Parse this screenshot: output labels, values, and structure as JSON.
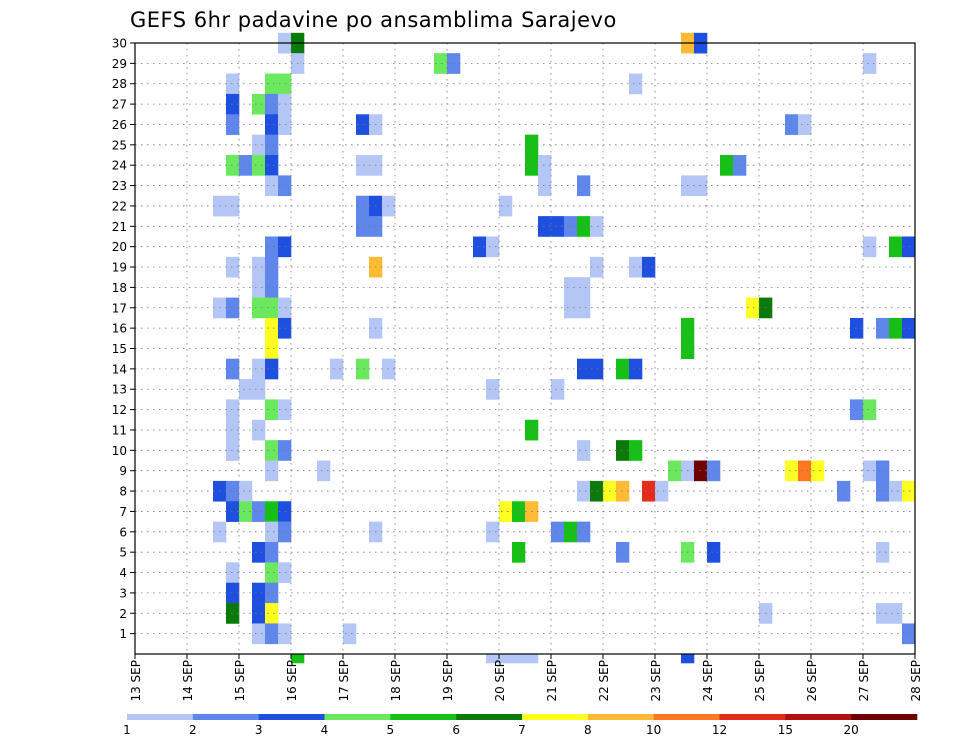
{
  "chart_data": {
    "type": "heatmap",
    "title": "GEFS 6hr padavine po ansamblima Sarajevo",
    "xlabel": "",
    "ylabel": "",
    "x_tick_labels": [
      "13 SEP",
      "14 SEP",
      "15 SEP",
      "16 SEP",
      "17 SEP",
      "18 SEP",
      "19 SEP",
      "20 SEP",
      "21 SEP",
      "22 SEP",
      "23 SEP",
      "24 SEP",
      "25 SEP",
      "26 SEP",
      "27 SEP",
      "28 SEP"
    ],
    "y_tick_labels": [
      "1",
      "2",
      "3",
      "4",
      "5",
      "6",
      "7",
      "8",
      "9",
      "10",
      "11",
      "12",
      "13",
      "14",
      "15",
      "16",
      "17",
      "18",
      "19",
      "20",
      "21",
      "22",
      "23",
      "24",
      "25",
      "26",
      "27",
      "28",
      "29",
      "30"
    ],
    "x_range": [
      0,
      60
    ],
    "y_range": [
      0,
      30
    ],
    "x_step_note": "6-hour steps, 4 per day",
    "grid": true,
    "colorbar": {
      "labels": [
        "1",
        "2",
        "3",
        "4",
        "5",
        "6",
        "7",
        "8",
        "10",
        "12",
        "15",
        "20"
      ],
      "colors": [
        "#b3c6f5",
        "#5f86ea",
        "#1e4fdf",
        "#6ce85e",
        "#16c016",
        "#0b7a0b",
        "#ffff22",
        "#ffbb33",
        "#ff7722",
        "#e62b1a",
        "#b31010",
        "#6e0000"
      ]
    },
    "cells": [
      {
        "m": 30,
        "t": 11,
        "c": 0
      },
      {
        "m": 30,
        "t": 12,
        "c": 5
      },
      {
        "m": 30,
        "t": 42,
        "c": 7
      },
      {
        "m": 30,
        "t": 43,
        "c": 2
      },
      {
        "m": 29,
        "t": 12,
        "c": 0
      },
      {
        "m": 29,
        "t": 23,
        "c": 3
      },
      {
        "m": 29,
        "t": 24,
        "c": 1
      },
      {
        "m": 29,
        "t": 56,
        "c": 0
      },
      {
        "m": 28,
        "t": 7,
        "c": 0
      },
      {
        "m": 28,
        "t": 10,
        "c": 3
      },
      {
        "m": 28,
        "t": 11,
        "c": 3
      },
      {
        "m": 28,
        "t": 38,
        "c": 0
      },
      {
        "m": 27,
        "t": 7,
        "c": 2
      },
      {
        "m": 27,
        "t": 9,
        "c": 3
      },
      {
        "m": 27,
        "t": 10,
        "c": 1
      },
      {
        "m": 27,
        "t": 11,
        "c": 0
      },
      {
        "m": 26,
        "t": 7,
        "c": 1
      },
      {
        "m": 26,
        "t": 10,
        "c": 2
      },
      {
        "m": 26,
        "t": 11,
        "c": 0
      },
      {
        "m": 26,
        "t": 17,
        "c": 2
      },
      {
        "m": 26,
        "t": 18,
        "c": 0
      },
      {
        "m": 26,
        "t": 50,
        "c": 1
      },
      {
        "m": 26,
        "t": 51,
        "c": 0
      },
      {
        "m": 25,
        "t": 9,
        "c": 0
      },
      {
        "m": 25,
        "t": 10,
        "c": 1
      },
      {
        "m": 25,
        "t": 30,
        "c": 4
      },
      {
        "m": 24,
        "t": 7,
        "c": 3
      },
      {
        "m": 24,
        "t": 8,
        "c": 1
      },
      {
        "m": 24,
        "t": 9,
        "c": 3
      },
      {
        "m": 24,
        "t": 10,
        "c": 2
      },
      {
        "m": 24,
        "t": 17,
        "c": 0
      },
      {
        "m": 24,
        "t": 18,
        "c": 0
      },
      {
        "m": 24,
        "t": 30,
        "c": 4
      },
      {
        "m": 24,
        "t": 31,
        "c": 0
      },
      {
        "m": 24,
        "t": 45,
        "c": 4
      },
      {
        "m": 24,
        "t": 46,
        "c": 1
      },
      {
        "m": 23,
        "t": 10,
        "c": 0
      },
      {
        "m": 23,
        "t": 11,
        "c": 1
      },
      {
        "m": 23,
        "t": 31,
        "c": 0
      },
      {
        "m": 23,
        "t": 34,
        "c": 1
      },
      {
        "m": 23,
        "t": 42,
        "c": 0
      },
      {
        "m": 23,
        "t": 43,
        "c": 0
      },
      {
        "m": 22,
        "t": 6,
        "c": 0
      },
      {
        "m": 22,
        "t": 7,
        "c": 0
      },
      {
        "m": 22,
        "t": 17,
        "c": 1
      },
      {
        "m": 22,
        "t": 18,
        "c": 2
      },
      {
        "m": 22,
        "t": 19,
        "c": 0
      },
      {
        "m": 22,
        "t": 28,
        "c": 0
      },
      {
        "m": 21,
        "t": 17,
        "c": 1
      },
      {
        "m": 21,
        "t": 18,
        "c": 1
      },
      {
        "m": 21,
        "t": 31,
        "c": 2
      },
      {
        "m": 21,
        "t": 32,
        "c": 2
      },
      {
        "m": 21,
        "t": 33,
        "c": 1
      },
      {
        "m": 21,
        "t": 34,
        "c": 4
      },
      {
        "m": 21,
        "t": 35,
        "c": 0
      },
      {
        "m": 20,
        "t": 10,
        "c": 1
      },
      {
        "m": 20,
        "t": 11,
        "c": 2
      },
      {
        "m": 20,
        "t": 26,
        "c": 2
      },
      {
        "m": 20,
        "t": 27,
        "c": 0
      },
      {
        "m": 20,
        "t": 56,
        "c": 0
      },
      {
        "m": 20,
        "t": 58,
        "c": 4
      },
      {
        "m": 20,
        "t": 59,
        "c": 2
      },
      {
        "m": 19,
        "t": 7,
        "c": 0
      },
      {
        "m": 19,
        "t": 9,
        "c": 0
      },
      {
        "m": 19,
        "t": 10,
        "c": 1
      },
      {
        "m": 19,
        "t": 18,
        "c": 7
      },
      {
        "m": 19,
        "t": 35,
        "c": 0
      },
      {
        "m": 19,
        "t": 38,
        "c": 0
      },
      {
        "m": 19,
        "t": 39,
        "c": 2
      },
      {
        "m": 18,
        "t": 9,
        "c": 0
      },
      {
        "m": 18,
        "t": 10,
        "c": 1
      },
      {
        "m": 18,
        "t": 33,
        "c": 0
      },
      {
        "m": 18,
        "t": 34,
        "c": 0
      },
      {
        "m": 17,
        "t": 6,
        "c": 0
      },
      {
        "m": 17,
        "t": 7,
        "c": 1
      },
      {
        "m": 17,
        "t": 9,
        "c": 3
      },
      {
        "m": 17,
        "t": 10,
        "c": 3
      },
      {
        "m": 17,
        "t": 11,
        "c": 0
      },
      {
        "m": 17,
        "t": 33,
        "c": 0
      },
      {
        "m": 17,
        "t": 34,
        "c": 0
      },
      {
        "m": 17,
        "t": 47,
        "c": 6
      },
      {
        "m": 17,
        "t": 48,
        "c": 5
      },
      {
        "m": 16,
        "t": 10,
        "c": 6
      },
      {
        "m": 16,
        "t": 11,
        "c": 2
      },
      {
        "m": 16,
        "t": 18,
        "c": 0
      },
      {
        "m": 16,
        "t": 42,
        "c": 4
      },
      {
        "m": 16,
        "t": 55,
        "c": 2
      },
      {
        "m": 16,
        "t": 57,
        "c": 1
      },
      {
        "m": 16,
        "t": 58,
        "c": 4
      },
      {
        "m": 16,
        "t": 59,
        "c": 2
      },
      {
        "m": 15,
        "t": 10,
        "c": 6
      },
      {
        "m": 15,
        "t": 42,
        "c": 4
      },
      {
        "m": 14,
        "t": 7,
        "c": 1
      },
      {
        "m": 14,
        "t": 9,
        "c": 0
      },
      {
        "m": 14,
        "t": 10,
        "c": 2
      },
      {
        "m": 14,
        "t": 15,
        "c": 0
      },
      {
        "m": 14,
        "t": 17,
        "c": 3
      },
      {
        "m": 14,
        "t": 19,
        "c": 0
      },
      {
        "m": 14,
        "t": 34,
        "c": 2
      },
      {
        "m": 14,
        "t": 35,
        "c": 2
      },
      {
        "m": 14,
        "t": 37,
        "c": 4
      },
      {
        "m": 14,
        "t": 38,
        "c": 2
      },
      {
        "m": 13,
        "t": 8,
        "c": 0
      },
      {
        "m": 13,
        "t": 9,
        "c": 0
      },
      {
        "m": 13,
        "t": 27,
        "c": 0
      },
      {
        "m": 13,
        "t": 32,
        "c": 0
      },
      {
        "m": 12,
        "t": 7,
        "c": 0
      },
      {
        "m": 12,
        "t": 10,
        "c": 3
      },
      {
        "m": 12,
        "t": 11,
        "c": 0
      },
      {
        "m": 12,
        "t": 55,
        "c": 1
      },
      {
        "m": 12,
        "t": 56,
        "c": 3
      },
      {
        "m": 11,
        "t": 7,
        "c": 0
      },
      {
        "m": 11,
        "t": 9,
        "c": 0
      },
      {
        "m": 11,
        "t": 30,
        "c": 4
      },
      {
        "m": 10,
        "t": 7,
        "c": 0
      },
      {
        "m": 10,
        "t": 10,
        "c": 3
      },
      {
        "m": 10,
        "t": 11,
        "c": 1
      },
      {
        "m": 10,
        "t": 34,
        "c": 0
      },
      {
        "m": 10,
        "t": 37,
        "c": 5
      },
      {
        "m": 10,
        "t": 38,
        "c": 4
      },
      {
        "m": 9,
        "t": 10,
        "c": 0
      },
      {
        "m": 9,
        "t": 14,
        "c": 0
      },
      {
        "m": 9,
        "t": 41,
        "c": 3
      },
      {
        "m": 9,
        "t": 42,
        "c": 0
      },
      {
        "m": 9,
        "t": 43,
        "c": 11
      },
      {
        "m": 9,
        "t": 44,
        "c": 1
      },
      {
        "m": 9,
        "t": 50,
        "c": 6
      },
      {
        "m": 9,
        "t": 51,
        "c": 8
      },
      {
        "m": 9,
        "t": 52,
        "c": 6
      },
      {
        "m": 9,
        "t": 56,
        "c": 0
      },
      {
        "m": 9,
        "t": 57,
        "c": 1
      },
      {
        "m": 8,
        "t": 6,
        "c": 2
      },
      {
        "m": 8,
        "t": 7,
        "c": 1
      },
      {
        "m": 8,
        "t": 8,
        "c": 0
      },
      {
        "m": 8,
        "t": 34,
        "c": 0
      },
      {
        "m": 8,
        "t": 35,
        "c": 5
      },
      {
        "m": 8,
        "t": 36,
        "c": 6
      },
      {
        "m": 8,
        "t": 37,
        "c": 7
      },
      {
        "m": 8,
        "t": 39,
        "c": 9
      },
      {
        "m": 8,
        "t": 40,
        "c": 0
      },
      {
        "m": 8,
        "t": 54,
        "c": 1
      },
      {
        "m": 8,
        "t": 57,
        "c": 1
      },
      {
        "m": 8,
        "t": 58,
        "c": 0
      },
      {
        "m": 8,
        "t": 59,
        "c": 6
      },
      {
        "m": 7,
        "t": 7,
        "c": 2
      },
      {
        "m": 7,
        "t": 8,
        "c": 3
      },
      {
        "m": 7,
        "t": 9,
        "c": 1
      },
      {
        "m": 7,
        "t": 10,
        "c": 4
      },
      {
        "m": 7,
        "t": 11,
        "c": 2
      },
      {
        "m": 7,
        "t": 28,
        "c": 6
      },
      {
        "m": 7,
        "t": 29,
        "c": 4
      },
      {
        "m": 7,
        "t": 30,
        "c": 7
      },
      {
        "m": 6,
        "t": 6,
        "c": 0
      },
      {
        "m": 6,
        "t": 10,
        "c": 0
      },
      {
        "m": 6,
        "t": 11,
        "c": 1
      },
      {
        "m": 6,
        "t": 18,
        "c": 0
      },
      {
        "m": 6,
        "t": 27,
        "c": 0
      },
      {
        "m": 6,
        "t": 32,
        "c": 1
      },
      {
        "m": 6,
        "t": 33,
        "c": 4
      },
      {
        "m": 6,
        "t": 34,
        "c": 1
      },
      {
        "m": 5,
        "t": 9,
        "c": 2
      },
      {
        "m": 5,
        "t": 10,
        "c": 1
      },
      {
        "m": 5,
        "t": 29,
        "c": 4
      },
      {
        "m": 5,
        "t": 37,
        "c": 1
      },
      {
        "m": 5,
        "t": 42,
        "c": 3
      },
      {
        "m": 5,
        "t": 44,
        "c": 2
      },
      {
        "m": 5,
        "t": 57,
        "c": 0
      },
      {
        "m": 4,
        "t": 7,
        "c": 0
      },
      {
        "m": 4,
        "t": 10,
        "c": 3
      },
      {
        "m": 4,
        "t": 11,
        "c": 0
      },
      {
        "m": 3,
        "t": 7,
        "c": 2
      },
      {
        "m": 3,
        "t": 9,
        "c": 2
      },
      {
        "m": 3,
        "t": 10,
        "c": 1
      },
      {
        "m": 2,
        "t": 7,
        "c": 5
      },
      {
        "m": 2,
        "t": 9,
        "c": 2
      },
      {
        "m": 2,
        "t": 10,
        "c": 6
      },
      {
        "m": 2,
        "t": 48,
        "c": 0
      },
      {
        "m": 2,
        "t": 57,
        "c": 0
      },
      {
        "m": 2,
        "t": 58,
        "c": 0
      },
      {
        "m": 1,
        "t": 9,
        "c": 0
      },
      {
        "m": 1,
        "t": 10,
        "c": 1
      },
      {
        "m": 1,
        "t": 11,
        "c": 0
      },
      {
        "m": 1,
        "t": 16,
        "c": 0
      },
      {
        "m": 1,
        "t": 59,
        "c": 1
      },
      {
        "m": 0,
        "t": 12,
        "c": 4
      },
      {
        "m": 0,
        "t": 27,
        "c": 0
      },
      {
        "m": 0,
        "t": 28,
        "c": 0
      },
      {
        "m": 0,
        "t": 29,
        "c": 0
      },
      {
        "m": 0,
        "t": 30,
        "c": 0
      },
      {
        "m": 0,
        "t": 42,
        "c": 2
      }
    ]
  }
}
